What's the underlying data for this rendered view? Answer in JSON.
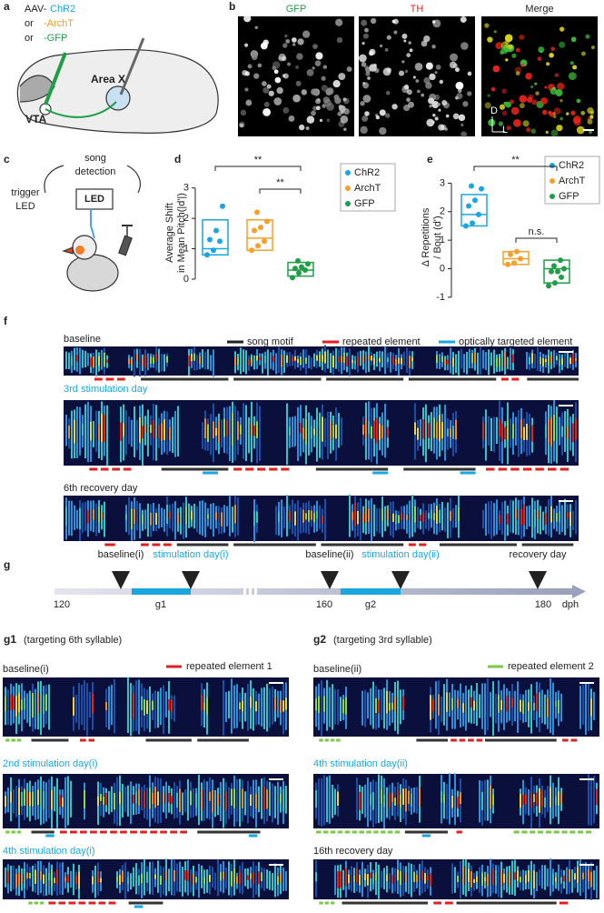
{
  "panels": {
    "a": {
      "label": "a",
      "vector_prefix": "AAV-",
      "chr2": "ChR2",
      "or1": "or",
      "archt": "-ArchT",
      "or2": "or",
      "gfp": "-GFP",
      "area_x": "Area X",
      "vta": "VTA"
    },
    "b": {
      "label": "b",
      "titles": [
        "GFP",
        "TH",
        "Merge"
      ],
      "axis_d": "D",
      "axis_l": "L"
    },
    "c": {
      "label": "c",
      "song_detection": [
        "song",
        "detection"
      ],
      "trigger_led": [
        "trigger",
        "LED"
      ],
      "led": "LED"
    },
    "d": {
      "type": "box",
      "label": "d",
      "ylabel": [
        "Average Shift",
        "in Mean Pitch(|d'|)"
      ],
      "ylim": [
        -0.15,
        3.2
      ],
      "yticks": [
        0,
        1,
        2,
        3
      ],
      "significance": [
        "**",
        "**"
      ],
      "groups": [
        {
          "name": "ChR2",
          "color": "#1ba6e0",
          "q1": 0.8,
          "median": 1.0,
          "q3": 1.95,
          "points": [
            0.8,
            0.95,
            1.25,
            1.3,
            1.6,
            2.4
          ]
        },
        {
          "name": "ArchT",
          "color": "#f5a02a",
          "q1": 0.95,
          "median": 1.35,
          "q3": 1.95,
          "points": [
            0.95,
            1.1,
            1.25,
            1.6,
            1.7,
            1.9,
            2.2
          ]
        },
        {
          "name": "GFP",
          "color": "#1f9e48",
          "q1": 0.1,
          "median": 0.3,
          "q3": 0.55,
          "points": [
            0.05,
            0.2,
            0.3,
            0.35,
            0.4,
            0.5,
            0.6
          ]
        }
      ]
    },
    "e": {
      "type": "box",
      "label": "e",
      "ylabel": [
        "Δ Repetitions",
        "/ Bout (d')"
      ],
      "ylim": [
        -1.1,
        3.3
      ],
      "yticks": [
        -1,
        0,
        1,
        2,
        3
      ],
      "significance": [
        "**",
        "n.s."
      ],
      "groups": [
        {
          "name": "ChR2",
          "color": "#1ba6e0",
          "q1": 1.5,
          "median": 1.9,
          "q3": 2.6,
          "points": [
            1.5,
            1.6,
            1.9,
            2.2,
            2.4,
            2.8,
            2.9
          ]
        },
        {
          "name": "ArchT",
          "color": "#f5a02a",
          "q1": 0.15,
          "median": 0.35,
          "q3": 0.6,
          "points": [
            0.15,
            0.2,
            0.35,
            0.5,
            0.6
          ]
        },
        {
          "name": "GFP",
          "color": "#1f9e48",
          "q1": -0.5,
          "median": 0,
          "q3": 0.3,
          "points": [
            -0.6,
            -0.5,
            -0.3,
            -0.1,
            -0.1,
            0,
            0.1,
            0.3
          ]
        }
      ]
    },
    "f": {
      "label": "f",
      "legend": [
        "song motif",
        "repeated element",
        "optically targeted element"
      ],
      "rows": [
        "baseline",
        "3rd stimulation day",
        "6th recovery day"
      ]
    },
    "g": {
      "label": "g",
      "events": [
        "baseline(i)",
        "stimulation day(i)",
        "baseline(ii)",
        "stimulation day(ii)",
        "recovery day"
      ],
      "ticks": [
        120,
        160,
        180
      ],
      "unit": "dph",
      "segments": [
        "g1",
        "g2"
      ]
    },
    "g1": {
      "label": "g1",
      "subtitle": "(targeting 6th syllable)",
      "legend": "repeated element 1",
      "rows": [
        "baseline(i)",
        "2nd stimulation day(i)",
        "4th stimulation day(i)"
      ]
    },
    "g2": {
      "label": "g2",
      "subtitle": "(targeting 3rd syllable)",
      "legend": "repeated element 2",
      "rows": [
        "baseline(ii)",
        "4th stimulation day(ii)",
        "16th recovery day"
      ]
    }
  }
}
